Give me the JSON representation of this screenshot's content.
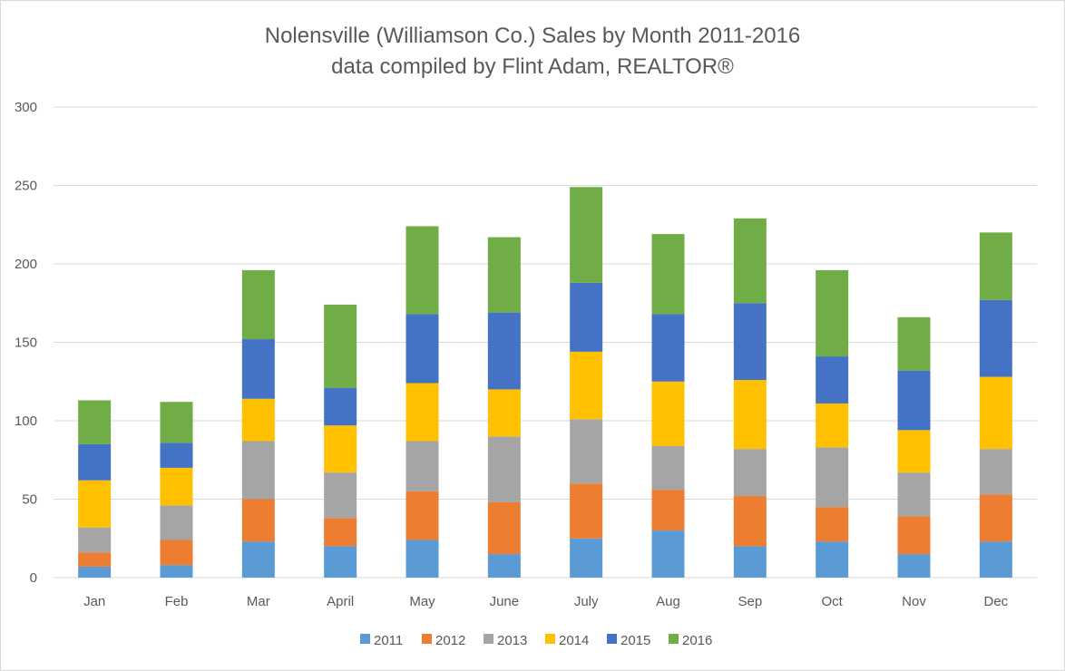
{
  "chart_data": {
    "type": "bar",
    "stacked": true,
    "title": "Nolensville (Williamson Co.) Sales by Month 2011-2016",
    "subtitle": "data compiled by Flint Adam, REALTOR®",
    "xlabel": "",
    "ylabel": "",
    "ylim": [
      0,
      300
    ],
    "yticks": [
      0,
      50,
      100,
      150,
      200,
      250,
      300
    ],
    "grid": true,
    "legend_position": "bottom",
    "categories": [
      "Jan",
      "Feb",
      "Mar",
      "April",
      "May",
      "June",
      "July",
      "Aug",
      "Sep",
      "Oct",
      "Nov",
      "Dec"
    ],
    "series": [
      {
        "name": "2011",
        "color": "#5b9bd5",
        "values": [
          7,
          8,
          23,
          20,
          24,
          15,
          25,
          30,
          20,
          23,
          15,
          23
        ]
      },
      {
        "name": "2012",
        "color": "#ed7d31",
        "values": [
          9,
          16,
          27,
          18,
          31,
          33,
          35,
          26,
          32,
          22,
          24,
          30
        ]
      },
      {
        "name": "2013",
        "color": "#a5a5a5",
        "values": [
          16,
          22,
          37,
          29,
          32,
          42,
          41,
          28,
          30,
          38,
          28,
          29
        ]
      },
      {
        "name": "2014",
        "color": "#ffc000",
        "values": [
          30,
          24,
          27,
          30,
          37,
          30,
          43,
          41,
          44,
          28,
          27,
          46
        ]
      },
      {
        "name": "2015",
        "color": "#4472c4",
        "values": [
          23,
          16,
          38,
          24,
          44,
          49,
          44,
          43,
          49,
          30,
          38,
          49
        ]
      },
      {
        "name": "2016",
        "color": "#70ad47",
        "values": [
          28,
          26,
          44,
          53,
          56,
          48,
          61,
          51,
          54,
          55,
          34,
          43
        ]
      }
    ]
  }
}
